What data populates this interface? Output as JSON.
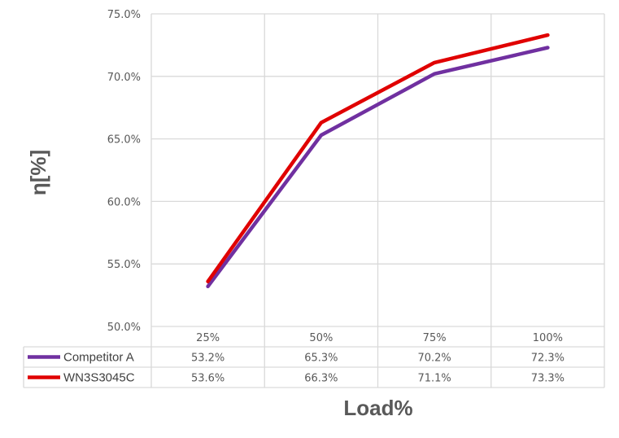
{
  "chart_data": {
    "type": "line",
    "title": "",
    "xlabel": "Load%",
    "ylabel": "η[%]",
    "categories": [
      "25%",
      "50%",
      "75%",
      "100%"
    ],
    "ylim": [
      50.0,
      75.0
    ],
    "yticks": [
      "50.0%",
      "55.0%",
      "60.0%",
      "65.0%",
      "70.0%",
      "75.0%"
    ],
    "ytick_values": [
      50,
      55,
      60,
      65,
      70,
      75
    ],
    "grid": true,
    "legend": "data table",
    "series": [
      {
        "name": "Competitor A",
        "color": "#7030a0",
        "values": [
          53.2,
          65.3,
          70.2,
          72.3
        ],
        "labels": [
          "53.2%",
          "65.3%",
          "70.2%",
          "72.3%"
        ]
      },
      {
        "name": "WN3S3045C",
        "color": "#e00000",
        "values": [
          53.6,
          66.3,
          71.1,
          73.3
        ],
        "labels": [
          "53.6%",
          "66.3%",
          "71.1%",
          "73.3%"
        ]
      }
    ]
  }
}
